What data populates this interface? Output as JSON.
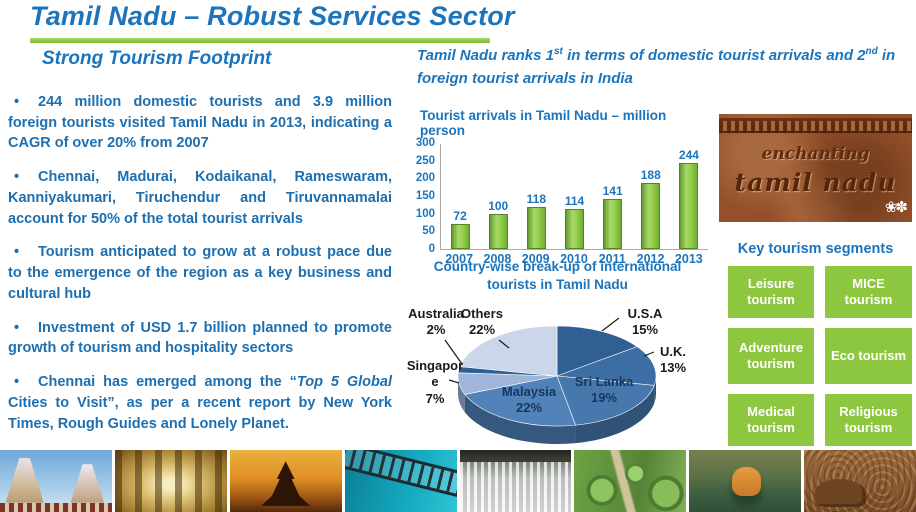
{
  "slide": {
    "title": "Tamil Nadu – Robust Services Sector",
    "bullet_glyph": "•",
    "left": {
      "heading": "Strong Tourism Footprint",
      "bullets": [
        "244 million domestic tourists and 3.9 million foreign tourists visited Tamil Nadu in 2013, indicating a CAGR of over 20% from 2007",
        "Chennai, Madurai, Kodaikanal, Rameswaram, Kanniyakumari, Tiruchendur and Tiruvannamalai account for 50% of the total tourist arrivals",
        "Tourism anticipated to grow at a robust pace due to the emergence of the region as a key business and cultural hub",
        "Investment of USD 1.7 billion planned to promote growth of tourism and hospitality sectors"
      ],
      "bullet_quote": {
        "pre": "Chennai has emerged among the “",
        "italic": "Top 5 Global",
        "post": " Cities to Visit”, as per a recent report by New York Times, Rough Guides and Lonely Planet."
      }
    },
    "right_header": {
      "p1": "Tamil Nadu ranks 1",
      "s1": "st",
      "p2": " in terms of domestic tourist arrivals and 2",
      "s2": "nd",
      "p3": " in foreign tourist arrivals in India"
    },
    "brand": {
      "line1": "enchanting",
      "line2": "tamil nadu",
      "flowers_icon": "❀✽"
    },
    "segments": {
      "title": "Key tourism segments",
      "items": [
        "Leisure tourism",
        "MICE tourism",
        "Adventure tourism",
        "Eco tourism",
        "Medical tourism",
        "Religious tourism"
      ]
    },
    "photos": [
      "temple-gopuram",
      "temple-corridor",
      "shore-temple",
      "sea-bridge",
      "waterfall",
      "botanical-garden",
      "tiger-in-water",
      "stone-carving"
    ]
  },
  "colors": {
    "accent_blue": "#1c75bc",
    "accent_green": "#8dc63f",
    "pie_inner_label": "#17375e"
  },
  "chart_data": [
    {
      "type": "bar",
      "title": "Tourist arrivals in Tamil Nadu – million person",
      "categories": [
        "2007",
        "2008",
        "2009",
        "2010",
        "2011",
        "2012",
        "2013"
      ],
      "values": [
        72,
        100,
        118,
        114,
        141,
        188,
        244
      ],
      "xlabel": "",
      "ylabel": "",
      "ylim": [
        0,
        300
      ],
      "ytick_step": 50,
      "grid": false,
      "legend_position": "none",
      "bar_color": "#8dc63f"
    },
    {
      "type": "pie",
      "title_line1": "Country-wise break-up  of international",
      "title_line2": "tourists in Tamil Nadu",
      "labels": [
        "U.S.A",
        "U.K.",
        "Sri Lanka",
        "Malaysia",
        "Singapore",
        "Australia",
        "Others"
      ],
      "values": [
        15,
        13,
        19,
        22,
        7,
        2,
        22
      ],
      "label_style": "callouts",
      "colors": [
        "#2f5f93",
        "#3c6ea4",
        "#4678ae",
        "#5182b9",
        "#9fb5d9",
        "#2f5f93",
        "#ccd6ea"
      ]
    }
  ]
}
